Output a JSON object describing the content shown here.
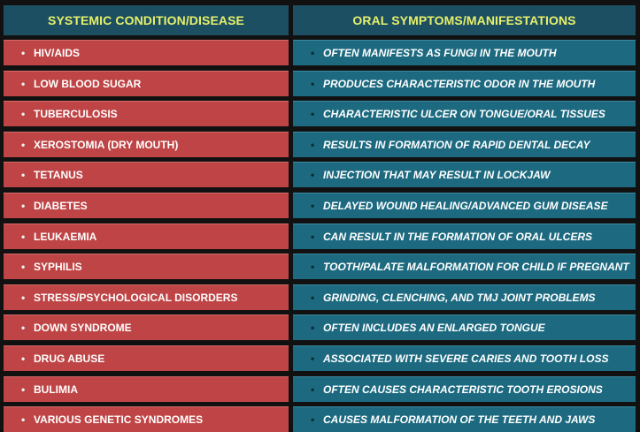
{
  "headers": {
    "left": "SYSTEMIC CONDITION/DISEASE",
    "right": "ORAL SYMPTOMS/MANIFESTATIONS"
  },
  "rows": [
    {
      "condition": "HIV/AIDS",
      "symptom": "OFTEN MANIFESTS AS FUNGI IN THE MOUTH"
    },
    {
      "condition": "LOW BLOOD SUGAR",
      "symptom": "PRODUCES CHARACTERISTIC ODOR IN THE MOUTH"
    },
    {
      "condition": "TUBERCULOSIS",
      "symptom": "CHARACTERISTIC ULCER ON TONGUE/ORAL TISSUES"
    },
    {
      "condition": "XEROSTOMIA (DRY MOUTH)",
      "symptom": "RESULTS IN FORMATION OF RAPID DENTAL DECAY"
    },
    {
      "condition": "TETANUS",
      "symptom": "INJECTION THAT MAY RESULT IN LOCKJAW"
    },
    {
      "condition": "DIABETES",
      "symptom": "DELAYED WOUND HEALING/ADVANCED GUM DISEASE"
    },
    {
      "condition": "LEUKAEMIA",
      "symptom": "CAN RESULT IN THE FORMATION OF ORAL ULCERS"
    },
    {
      "condition": "SYPHILIS",
      "symptom": "TOOTH/PALATE MALFORMATION FOR CHILD IF PREGNANT"
    },
    {
      "condition": "STRESS/PSYCHOLOGICAL DISORDERS",
      "symptom": "GRINDING, CLENCHING, AND TMJ JOINT PROBLEMS"
    },
    {
      "condition": "DOWN SYNDROME",
      "symptom": "OFTEN INCLUDES AN ENLARGED TONGUE"
    },
    {
      "condition": "DRUG ABUSE",
      "symptom": "ASSOCIATED WITH SEVERE CARIES AND TOOTH LOSS"
    },
    {
      "condition": "BULIMIA",
      "symptom": "OFTEN CAUSES CHARACTERISTIC TOOTH EROSIONS"
    },
    {
      "condition": "VARIOUS GENETIC SYNDROMES",
      "symptom": "CAUSES MALFORMATION OF THE TEETH AND JAWS"
    }
  ],
  "bullet": "•",
  "colors": {
    "header_bg": "#1d4f63",
    "header_text": "#e6f06a",
    "left_row_bg": "#bf4445",
    "right_row_bg": "#1d6a80"
  }
}
